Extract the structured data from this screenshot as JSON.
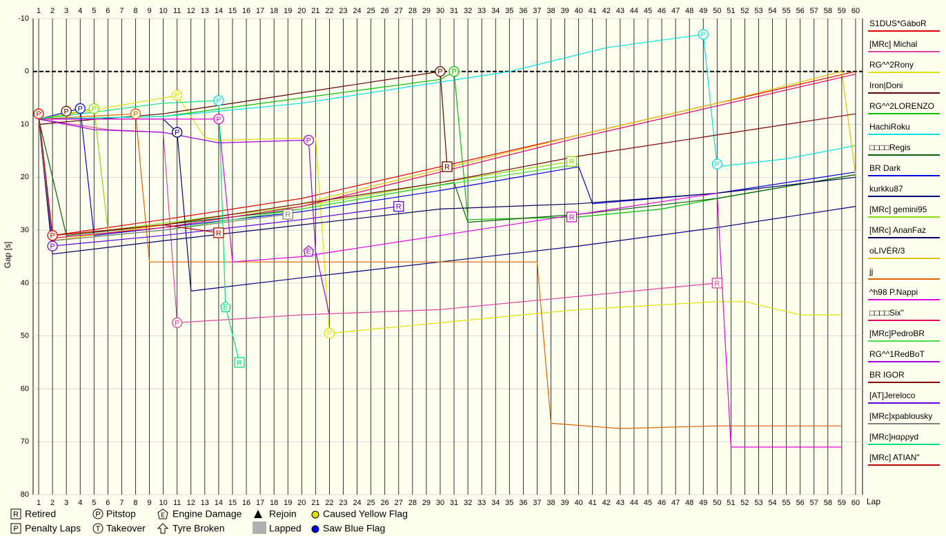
{
  "chart_data": {
    "type": "line",
    "x_label": "Lap",
    "y_label": "Gap [s]",
    "xlim": [
      0.6,
      60.5
    ],
    "xticks": [
      1,
      2,
      3,
      4,
      5,
      6,
      7,
      8,
      9,
      10,
      11,
      12,
      13,
      14,
      15,
      16,
      17,
      18,
      19,
      20,
      21,
      22,
      23,
      24,
      25,
      26,
      27,
      28,
      29,
      30,
      31,
      32,
      33,
      34,
      35,
      36,
      37,
      38,
      39,
      40,
      41,
      42,
      43,
      44,
      45,
      46,
      47,
      48,
      49,
      50,
      51,
      52,
      53,
      54,
      55,
      56,
      57,
      58,
      59,
      60
    ],
    "ylim": [
      -10,
      80
    ],
    "yticks": [
      -10,
      0,
      10,
      20,
      30,
      40,
      50,
      60,
      70,
      80
    ],
    "y_inverted": true,
    "grid": true,
    "zero_line": true,
    "series": [
      {
        "name": "S1DUS*GáboR",
        "color": "#e00000",
        "x": [
          1,
          2,
          10,
          20,
          30,
          40,
          50,
          60
        ],
        "values": [
          8,
          31,
          28,
          24,
          18,
          12,
          6,
          0
        ],
        "events": [
          {
            "lap": 1,
            "gap": 8,
            "label": "P"
          },
          {
            "lap": 2,
            "gap": 31,
            "label": "P"
          }
        ]
      },
      {
        "name": "[MRc] Michal",
        "color": "#e040a0",
        "x": [
          1,
          6,
          10,
          11,
          20,
          30,
          40,
          50
        ],
        "values": [
          9,
          11,
          11.5,
          47.5,
          46,
          45,
          42.5,
          40
        ],
        "events": [
          {
            "lap": 11,
            "gap": 47.5,
            "label": "P"
          },
          {
            "lap": 50,
            "gap": 40,
            "label": "R"
          }
        ]
      },
      {
        "name": "RG^^2Rony",
        "color": "#e0e000",
        "x": [
          1,
          10,
          11,
          13,
          14,
          21,
          22,
          30,
          40,
          50,
          52,
          56,
          59
        ],
        "values": [
          9,
          5,
          4.5,
          12.5,
          13,
          12.5,
          49.5,
          47.5,
          45,
          43.5,
          43.5,
          46,
          46
        ],
        "events": [
          {
            "lap": 11,
            "gap": 4.5,
            "label": "P"
          },
          {
            "lap": 22,
            "gap": 49.5,
            "label": "P"
          }
        ]
      },
      {
        "name": "Iron|Doni",
        "color": "#600000",
        "x": [
          1,
          3,
          10,
          20,
          30,
          30.5
        ],
        "values": [
          10,
          9.5,
          8,
          4,
          0,
          18
        ],
        "events": [
          {
            "lap": 3,
            "gap": 7.5,
            "label": "P"
          },
          {
            "lap": 30,
            "gap": 0,
            "label": "P"
          },
          {
            "lap": 30.5,
            "gap": 18,
            "label": "R"
          }
        ]
      },
      {
        "name": "RG^^2LORENZO",
        "color": "#00c000",
        "x": [
          1,
          10,
          20,
          30,
          31,
          32,
          40,
          46,
          50,
          60
        ],
        "values": [
          9,
          8.5,
          5,
          1.5,
          0,
          28,
          27.5,
          26,
          24,
          19.5
        ],
        "events": [
          {
            "lap": 31,
            "gap": 0,
            "label": "P"
          }
        ]
      },
      {
        "name": "HachiRoku",
        "color": "#00e0e0",
        "x": [
          1,
          10,
          20,
          30,
          35,
          42,
          49,
          50,
          55,
          60
        ],
        "values": [
          9,
          8.5,
          6,
          2,
          0,
          -4.5,
          -7,
          18,
          16.5,
          14
        ],
        "events": [
          {
            "lap": 14,
            "gap": 5.5,
            "label": "P"
          },
          {
            "lap": 49,
            "gap": -7,
            "label": "P"
          },
          {
            "lap": 50,
            "gap": 17.5,
            "label": "P"
          }
        ]
      },
      {
        "name": "□□□□Regis",
        "color": "#006000",
        "x": [
          1,
          3,
          10,
          20,
          31,
          32,
          40,
          50,
          60
        ],
        "values": [
          9,
          31,
          29,
          26,
          21,
          28.5,
          27,
          24,
          19.5
        ],
        "events": []
      },
      {
        "name": "BR Dark",
        "color": "#0000e0",
        "x": [
          1,
          4,
          5,
          15,
          20,
          30,
          40,
          41,
          50,
          60
        ],
        "values": [
          9,
          7,
          31,
          28,
          26.5,
          22.5,
          18,
          25,
          23,
          19
        ],
        "events": [
          {
            "lap": 4,
            "gap": 7,
            "label": "P"
          }
        ]
      },
      {
        "name": "kurkku87",
        "color": "#000080",
        "x": [
          1,
          10,
          11,
          12,
          20,
          30,
          40,
          50,
          60
        ],
        "values": [
          9,
          9,
          11.5,
          41.5,
          39,
          36,
          33,
          29.5,
          25.5
        ],
        "events": [
          {
            "lap": 11,
            "gap": 11.5,
            "label": "P"
          }
        ]
      },
      {
        "name": "[MRc] gemini95",
        "color": "#80e000",
        "x": [
          1,
          5,
          6,
          15,
          20,
          30,
          39.5
        ],
        "values": [
          9,
          7,
          30,
          27,
          25.5,
          21,
          17
        ],
        "events": [
          {
            "lap": 5,
            "gap": 7,
            "label": "P"
          },
          {
            "lap": 39.5,
            "gap": 17,
            "label": "R"
          }
        ]
      },
      {
        "name": "[MRc] AnanFaz",
        "color": "#000060",
        "x": [
          1,
          2,
          10,
          20,
          30,
          40,
          50,
          60
        ],
        "values": [
          9,
          34.5,
          32,
          29,
          26,
          25,
          23,
          20
        ],
        "events": []
      },
      {
        "name": "oLIVÉR/3",
        "color": "#e0c000",
        "x": [
          1,
          2,
          10,
          20,
          30,
          40,
          50,
          59,
          60
        ],
        "values": [
          9,
          32,
          29,
          25,
          18.5,
          12,
          6,
          0,
          19.5
        ],
        "events": []
      },
      {
        "name": "jj",
        "color": "#e06000",
        "x": [
          1,
          8,
          9,
          20,
          30,
          37,
          38,
          43,
          50,
          59
        ],
        "values": [
          9,
          8,
          36,
          36,
          36,
          36,
          66.5,
          67.5,
          67,
          67
        ],
        "events": [
          {
            "lap": 8,
            "gap": 8,
            "label": "P"
          }
        ]
      },
      {
        "name": "^h98 P.Nappi",
        "color": "#e000e0",
        "x": [
          1,
          14,
          15,
          20,
          30,
          40,
          50,
          51,
          55,
          59
        ],
        "values": [
          9,
          9,
          36,
          35,
          31,
          27,
          23,
          71,
          71,
          71
        ],
        "events": [
          {
            "lap": 14,
            "gap": 9,
            "label": "P"
          },
          {
            "lap": 39.5,
            "gap": 27.5,
            "label": "R"
          }
        ]
      },
      {
        "name": "□□□□Six\"",
        "color": "#e00060",
        "x": [
          1,
          2,
          10,
          20,
          30,
          40,
          50,
          60
        ],
        "values": [
          9,
          31.5,
          29.5,
          25.5,
          19,
          12.5,
          6.5,
          0.5
        ],
        "events": []
      },
      {
        "name": "[MRc]PedroBR",
        "color": "#40e040",
        "x": [
          1,
          2,
          10,
          20,
          30,
          40
        ],
        "values": [
          9,
          32,
          30,
          26,
          21.5,
          17.5
        ],
        "events": []
      },
      {
        "name": "RG^^1RedBoT",
        "color": "#a000e0",
        "x": [
          1,
          5,
          10,
          14,
          20,
          20.5,
          21,
          22
        ],
        "values": [
          9,
          11,
          11.5,
          13.5,
          13,
          13,
          34,
          46
        ],
        "events": [
          {
            "lap": 20.5,
            "gap": 13,
            "label": "P"
          },
          {
            "lap": 20.5,
            "gap": 34,
            "label": "E"
          }
        ]
      },
      {
        "name": "BR IGOR",
        "color": "#800000",
        "x": [
          1,
          2,
          10,
          20,
          30,
          40,
          50,
          60
        ],
        "values": [
          9,
          31,
          29,
          25,
          21,
          16,
          12,
          8
        ],
        "events": []
      },
      {
        "name": "[AT]Jereloco",
        "color": "#6000e0",
        "x": [
          1,
          2,
          10,
          20,
          27
        ],
        "values": [
          9,
          33,
          31,
          28,
          25.5
        ],
        "events": [
          {
            "lap": 2,
            "gap": 33,
            "label": "P"
          },
          {
            "lap": 27,
            "gap": 25.5,
            "label": "R"
          }
        ]
      },
      {
        "name": "[MRc]xpablousky",
        "color": "#808080",
        "x": [
          1,
          2,
          10,
          19
        ],
        "values": [
          9,
          32,
          30,
          27
        ],
        "events": [
          {
            "lap": 19,
            "gap": 27,
            "label": "R"
          }
        ]
      },
      {
        "name": "[MRc]нαρρуd",
        "color": "#00e080",
        "x": [
          1,
          10,
          14,
          14.5,
          15.5
        ],
        "values": [
          9,
          6,
          5.5,
          44.5,
          55
        ],
        "events": [
          {
            "lap": 14.5,
            "gap": 44.5,
            "label": "E"
          },
          {
            "lap": 15.5,
            "gap": 55,
            "label": "R"
          }
        ]
      },
      {
        "name": "[MRc] ATIAN\"",
        "color": "#c00000",
        "x": [
          1,
          2,
          10,
          14
        ],
        "values": [
          8,
          31,
          29,
          30.5
        ],
        "events": [
          {
            "lap": 14,
            "gap": 30.5,
            "label": "R"
          }
        ]
      }
    ],
    "event_legend": [
      {
        "icon": "R",
        "label": "Retired"
      },
      {
        "icon": "P",
        "label": "Pitstop"
      },
      {
        "icon": "E",
        "label": "Engine Damage"
      },
      {
        "label": "Rejoin"
      },
      {
        "label": "Caused Yellow Flag"
      },
      {
        "icon": "P",
        "label": "Penalty Laps"
      },
      {
        "icon": "T",
        "label": "Takeover"
      },
      {
        "label": "Tyre Broken"
      },
      {
        "label": "Lapped"
      },
      {
        "label": "Saw Blue Flag"
      }
    ]
  }
}
